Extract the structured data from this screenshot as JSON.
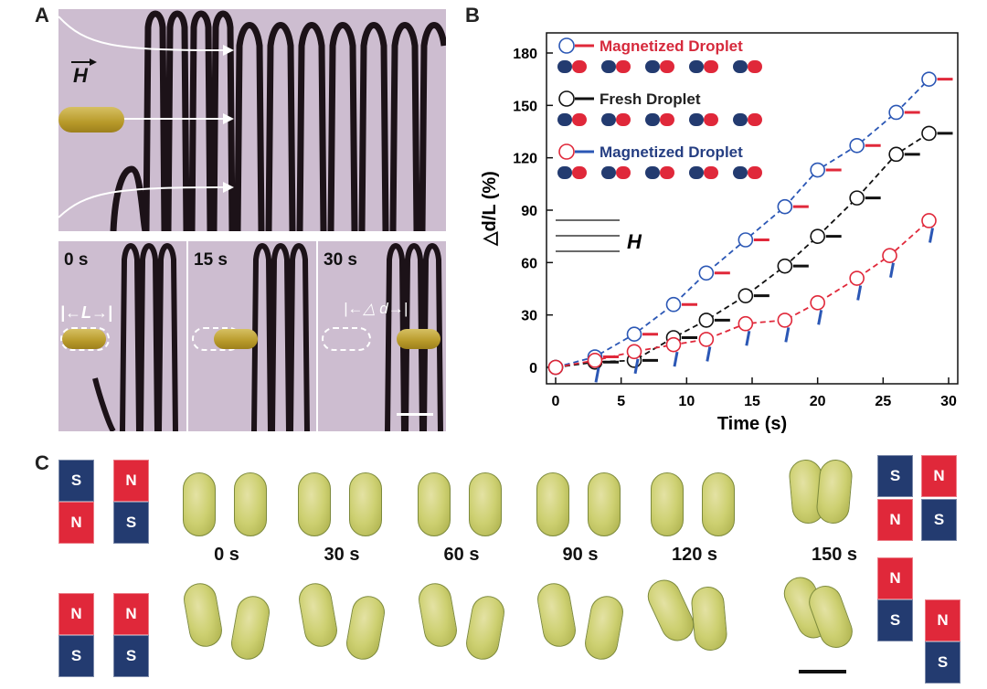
{
  "panels": {
    "a": "A",
    "b": "B",
    "c": "C"
  },
  "panel_a": {
    "field_label": "H",
    "times": [
      "0 s",
      "15 s",
      "30 s"
    ],
    "length_label": "L",
    "delta_label": "△ d"
  },
  "chart_data": {
    "type": "scatter",
    "xlabel": "Time (s)",
    "ylabel": "△d/L (%)",
    "xlim": [
      0,
      30
    ],
    "ylim": [
      0,
      180
    ],
    "xticks": [
      0,
      5,
      10,
      15,
      20,
      25,
      30
    ],
    "yticks": [
      0,
      30,
      60,
      90,
      120,
      150,
      180
    ],
    "legend_position": "top-left",
    "field_label": "H",
    "series": [
      {
        "name": "Magnetized Droplet",
        "marker_color": "#2b57b5",
        "arrow_color": "#e0283a",
        "line_color": "#2b57b5",
        "x": [
          0,
          3,
          6,
          9,
          11.5,
          14.5,
          17.5,
          20,
          23,
          26,
          28.5
        ],
        "y": [
          0,
          6,
          19,
          36,
          54,
          73,
          92,
          113,
          127,
          146,
          165
        ]
      },
      {
        "name": "Fresh Droplet",
        "marker_color": "#111111",
        "arrow_color": "#111111",
        "line_color": "#111111",
        "x": [
          0,
          3,
          6,
          9,
          11.5,
          14.5,
          17.5,
          20,
          23,
          26,
          28.5
        ],
        "y": [
          0,
          3,
          4,
          17,
          27,
          41,
          58,
          75,
          97,
          122,
          134
        ]
      },
      {
        "name": "Magnetized Droplet",
        "marker_color": "#e0283a",
        "arrow_color": "#2b57b5",
        "line_color": "#e0283a",
        "x": [
          0,
          3,
          6,
          9,
          11.5,
          14.5,
          17.5,
          20,
          23,
          25.5,
          28.5
        ],
        "y": [
          0,
          4,
          9,
          13,
          16,
          25,
          27,
          37,
          51,
          64,
          84
        ]
      }
    ]
  },
  "panel_c": {
    "times": [
      "0 s",
      "30 s",
      "60 s",
      "90 s",
      "120 s",
      "150 s"
    ],
    "magnet_top_left": [
      [
        "S",
        "N"
      ],
      [
        "N",
        "S"
      ]
    ],
    "magnet_bottom_left": [
      [
        "N",
        "S"
      ],
      [
        "N",
        "S"
      ]
    ],
    "magnet_top_right": [
      [
        "S",
        "N"
      ],
      [
        "N",
        "S"
      ]
    ],
    "magnet_bottom_right": [
      [
        "N",
        "S"
      ],
      [
        "N",
        "S"
      ]
    ]
  }
}
